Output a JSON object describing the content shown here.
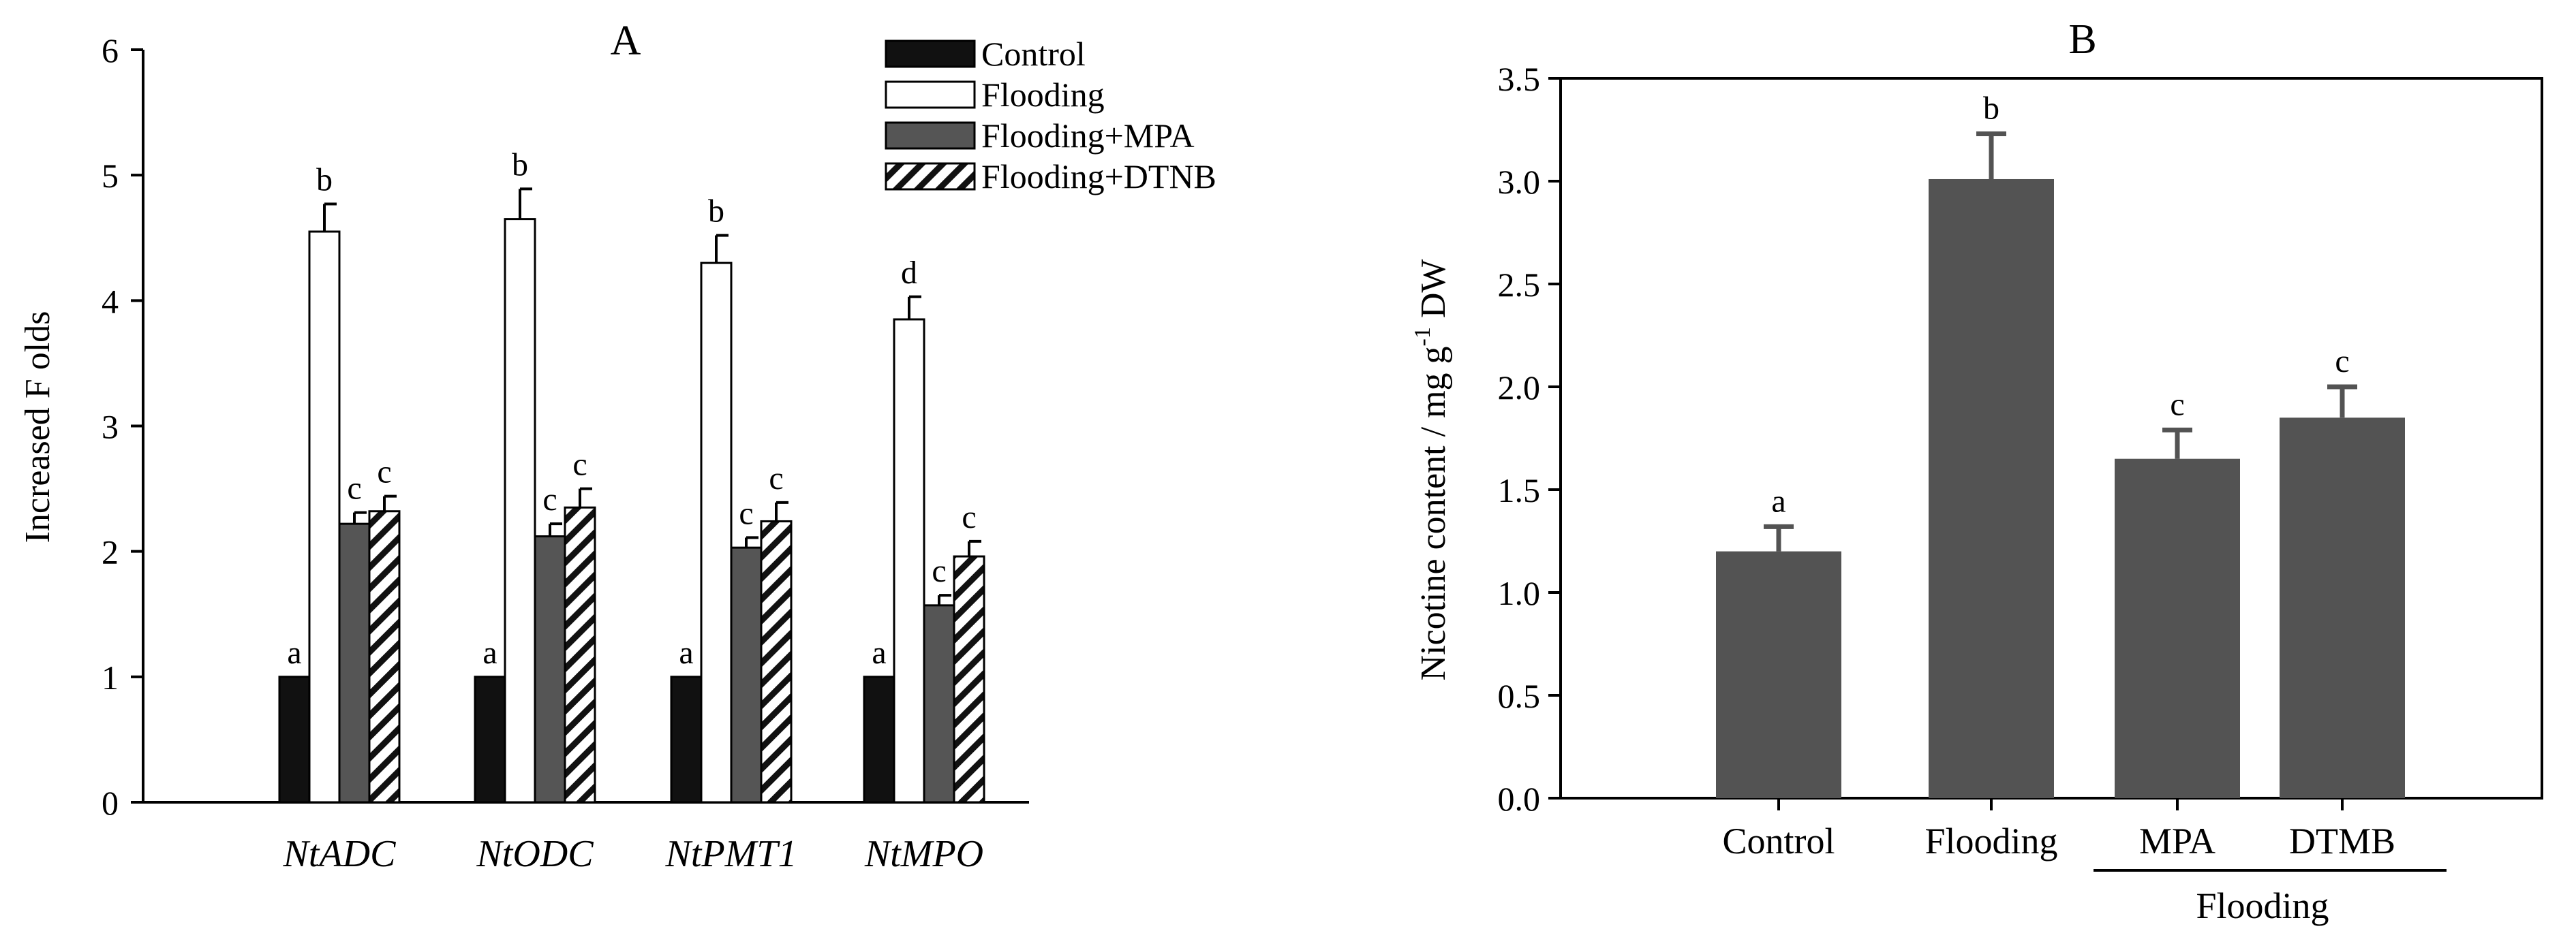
{
  "colors": {
    "control": "#111111",
    "flooding": "#ffffff",
    "flooding_mpa": "#555555",
    "hatch": "#111111",
    "bar_b": "#535353",
    "axis": "#000000"
  },
  "chart_data": [
    {
      "panel_label": "A",
      "type": "bar",
      "title": "A",
      "xlabel": "",
      "ylabel": "Increased F olds",
      "ylim": [
        0,
        6
      ],
      "yticks": [
        "0",
        "1",
        "2",
        "3",
        "4",
        "5",
        "6"
      ],
      "grid": false,
      "legend": "top-right",
      "categories": [
        "NtADC",
        "NtODC",
        "NtPMT1",
        "NtMPO"
      ],
      "series": [
        {
          "name": "Control",
          "values": [
            1.0,
            1.0,
            1.0,
            1.0
          ],
          "errors": [
            0,
            0,
            0,
            0
          ],
          "letters": [
            "a",
            "a",
            "a",
            "a"
          ]
        },
        {
          "name": "Flooding",
          "values": [
            4.55,
            4.65,
            4.3,
            3.85
          ],
          "errors": [
            0.22,
            0.24,
            0.22,
            0.18
          ],
          "letters": [
            "b",
            "b",
            "b",
            "d"
          ]
        },
        {
          "name": "Flooding+MPA",
          "values": [
            2.22,
            2.12,
            2.03,
            1.57
          ],
          "errors": [
            0.09,
            0.1,
            0.08,
            0.08
          ],
          "letters": [
            "c",
            "c",
            "c",
            "c"
          ]
        },
        {
          "name": "Flooding+DTNB",
          "values": [
            2.32,
            2.35,
            2.24,
            1.96
          ],
          "errors": [
            0.12,
            0.15,
            0.15,
            0.12
          ],
          "letters": [
            "c",
            "c",
            "c",
            "c"
          ]
        }
      ]
    },
    {
      "panel_label": "B",
      "type": "bar",
      "title": "B",
      "xlabel": "",
      "ylabel_main": "Nicotine content / mg g",
      "ylabel_sup": "-1",
      "ylabel_tail": " DW",
      "ylim": [
        0,
        3.5
      ],
      "yticks": [
        "0.0",
        "0.5",
        "1.0",
        "1.5",
        "2.0",
        "2.5",
        "3.0",
        "3.5"
      ],
      "grid": false,
      "categories": [
        "Control",
        "Flooding",
        "MPA",
        "DTMB"
      ],
      "values": [
        1.2,
        3.01,
        1.65,
        1.85
      ],
      "errors": [
        0.12,
        0.22,
        0.14,
        0.15
      ],
      "letters": [
        "a",
        "b",
        "c",
        "c"
      ],
      "group_label": "Flooding"
    }
  ]
}
